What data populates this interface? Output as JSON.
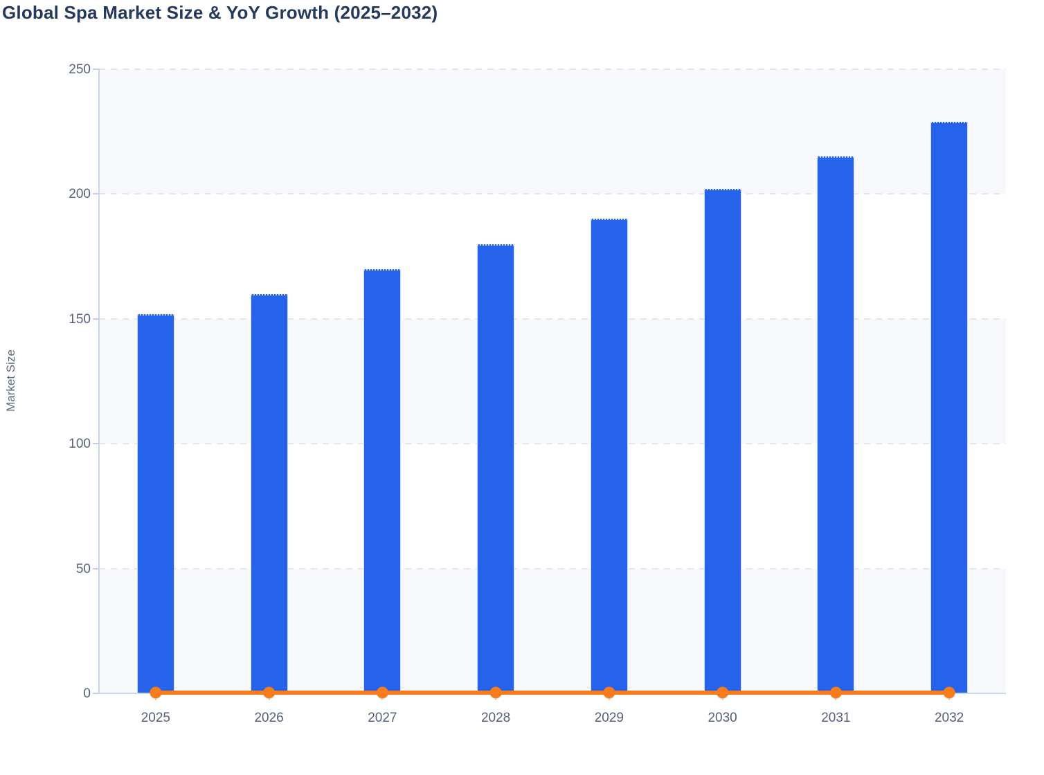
{
  "chart_data": {
    "type": "bar",
    "subtype": "combo-bar-line",
    "title": "Global Spa Market Size & YoY Growth (2025–2032)",
    "xlabel": "",
    "ylabel": "Market Size",
    "categories": [
      "2025",
      "2026",
      "2027",
      "2028",
      "2029",
      "2030",
      "2031",
      "2032"
    ],
    "series": [
      {
        "name": "Market Size",
        "type": "bar",
        "color": "#2563eb",
        "values": [
          152,
          160,
          170,
          180,
          190,
          202,
          215,
          229
        ]
      },
      {
        "name": "YoY Growth",
        "type": "line",
        "color": "#f97c1c",
        "values": [
          0,
          0,
          0,
          0,
          0,
          0,
          0,
          0
        ],
        "note": "line with circular markers rendered flat at approximately 0 on the left axis"
      }
    ],
    "ylim": [
      0,
      250
    ],
    "yticks": [
      0,
      50,
      100,
      150,
      200,
      250
    ],
    "grid": "horizontal dashed gridlines every 50",
    "plot_bands": "alternating horizontal row shading (shaded: 0-50, 100-150, 200-250)",
    "legend": "none",
    "colors": {
      "bar": "#2563eb",
      "bar_border": "#cdd9f4",
      "line": "#f97c1c",
      "band": "#f7f8fb",
      "gridline": "#e3e6ed",
      "axis": "#ccd6ea",
      "tick_label": "#55617a",
      "title": "#24395c",
      "axis_title": "#5a6880",
      "background": "#ffffff"
    }
  }
}
